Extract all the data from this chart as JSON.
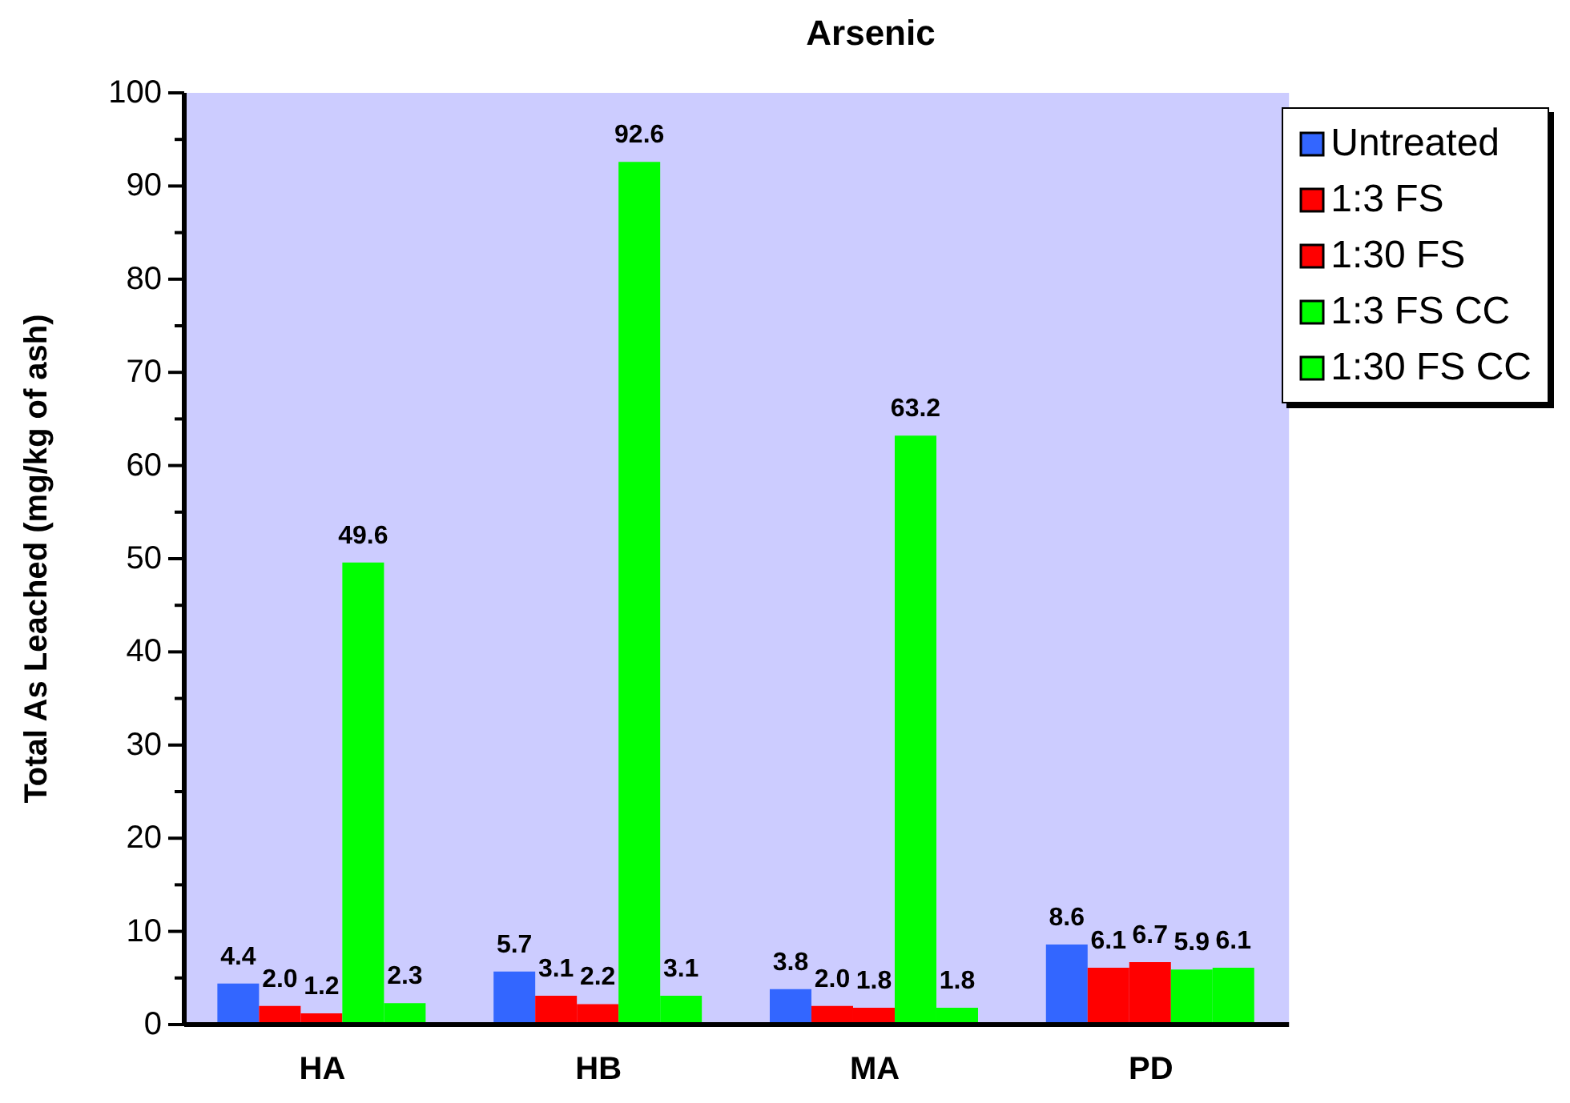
{
  "chart_data": {
    "type": "bar",
    "title": "Arsenic",
    "ylabel": "Total As Leached (mg/kg of ash)",
    "categories": [
      "HA",
      "HB",
      "MA",
      "PD"
    ],
    "series": [
      {
        "name": "Untreated",
        "color": "#3366ff",
        "values": [
          4.4,
          5.7,
          3.8,
          8.6
        ],
        "value_labels": [
          "4.4",
          "5.7",
          "3.8",
          "8.6"
        ]
      },
      {
        "name": "1:3 FS",
        "color": "#ff0000",
        "values": [
          2.0,
          3.1,
          2.0,
          6.1
        ],
        "value_labels": [
          "2.0",
          "3.1",
          "2.0",
          "6.1"
        ]
      },
      {
        "name": "1:30 FS",
        "color": "#ff0000",
        "values": [
          1.2,
          2.2,
          1.8,
          6.7
        ],
        "value_labels": [
          "1.2",
          "2.2",
          "1.8",
          "6.7"
        ]
      },
      {
        "name": "1:3 FS CC",
        "color": "#00ff00",
        "values": [
          49.6,
          92.6,
          63.2,
          5.9
        ],
        "value_labels": [
          "49.6",
          "92.6",
          "63.2",
          "5.9"
        ]
      },
      {
        "name": "1:30 FS CC",
        "color": "#00ff00",
        "values": [
          2.3,
          3.1,
          1.8,
          6.1
        ],
        "value_labels": [
          "2.3",
          "3.1",
          "1.8",
          "6.1"
        ]
      }
    ],
    "ylim": [
      0,
      100
    ],
    "yticks": [
      0,
      {
        "value": 5,
        "label": null
      },
      10,
      {
        "value": 15,
        "label": null
      },
      20,
      {
        "value": 25,
        "label": null
      },
      30,
      {
        "value": 35,
        "label": null
      },
      40,
      {
        "value": 45,
        "label": null
      },
      50,
      {
        "value": 55,
        "label": null
      },
      60,
      {
        "value": 65,
        "label": null
      },
      70,
      {
        "value": 75,
        "label": null
      },
      80,
      {
        "value": 85,
        "label": null
      },
      90,
      {
        "value": 95,
        "label": null
      },
      100
    ],
    "legend": "top right"
  }
}
